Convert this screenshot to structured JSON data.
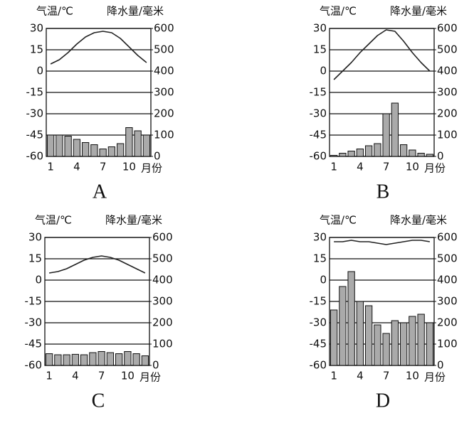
{
  "chart_data": [
    {
      "type": "climate",
      "title": "A",
      "x_label": "月份",
      "y_label": "气温/℃",
      "y2_label": "降水量/毫米",
      "categories": [
        "1",
        null,
        null,
        "4",
        null,
        null,
        "7",
        null,
        null,
        "10",
        null,
        null
      ],
      "ylim": [
        -60,
        30
      ],
      "yticks": [
        -60,
        -45,
        -30,
        -15,
        0,
        15,
        30
      ],
      "y2lim": [
        0,
        600
      ],
      "y2ticks": [
        0,
        100,
        200,
        300,
        400,
        500,
        600
      ],
      "grid": true,
      "series": [
        {
          "name": "气温",
          "kind": "line",
          "color": "#222",
          "values": [
            5,
            8,
            13,
            19,
            24,
            27,
            28,
            27,
            23,
            17,
            11,
            6
          ]
        },
        {
          "name": "降水量",
          "kind": "bar",
          "axis": "y2",
          "color": "#aaaaaa",
          "values": [
            100,
            100,
            95,
            80,
            65,
            55,
            35,
            45,
            60,
            135,
            120,
            100
          ]
        }
      ]
    },
    {
      "type": "climate",
      "title": "B",
      "x_label": "月份",
      "y_label": "气温/℃",
      "y2_label": "降水量/毫米",
      "categories": [
        "1",
        null,
        null,
        "4",
        null,
        null,
        "7",
        null,
        null,
        "10",
        null,
        null
      ],
      "ylim": [
        -60,
        30
      ],
      "yticks": [
        -60,
        -45,
        -30,
        -15,
        0,
        15,
        30
      ],
      "y2lim": [
        0,
        600
      ],
      "y2ticks": [
        0,
        100,
        200,
        300,
        400,
        500,
        600
      ],
      "grid": true,
      "series": [
        {
          "name": "气温",
          "kind": "line",
          "color": "#222",
          "values": [
            -6,
            0,
            6,
            13,
            19,
            25,
            29,
            28,
            21,
            13,
            6,
            0
          ]
        },
        {
          "name": "降水量",
          "kind": "bar",
          "axis": "y2",
          "color": "#aaaaaa",
          "values": [
            5,
            15,
            25,
            35,
            50,
            60,
            200,
            250,
            55,
            30,
            15,
            10
          ]
        }
      ]
    },
    {
      "type": "climate",
      "title": "C",
      "x_label": "月份",
      "y_label": "气温/℃",
      "y2_label": "降水量/毫米",
      "categories": [
        "1",
        null,
        null,
        "4",
        null,
        null,
        "7",
        null,
        null,
        "10",
        null,
        null
      ],
      "ylim": [
        -60,
        30
      ],
      "yticks": [
        -60,
        -45,
        -30,
        -15,
        0,
        15,
        30
      ],
      "y2lim": [
        0,
        600
      ],
      "y2ticks": [
        0,
        100,
        200,
        300,
        400,
        500,
        600
      ],
      "grid": true,
      "series": [
        {
          "name": "气温",
          "kind": "line",
          "color": "#222",
          "values": [
            5,
            6,
            8,
            11,
            14,
            16,
            17,
            16,
            14,
            11,
            8,
            5
          ]
        },
        {
          "name": "降水量",
          "kind": "bar",
          "axis": "y2",
          "color": "#aaaaaa",
          "values": [
            55,
            50,
            50,
            52,
            50,
            60,
            65,
            60,
            55,
            65,
            55,
            45
          ]
        }
      ]
    },
    {
      "type": "climate",
      "title": "D",
      "x_label": "月份",
      "y_label": "气温/℃",
      "y2_label": "降水量/毫米",
      "categories": [
        "1",
        null,
        null,
        "4",
        null,
        null,
        "7",
        null,
        null,
        "10",
        null,
        null
      ],
      "ylim": [
        -60,
        30
      ],
      "yticks": [
        -60,
        -45,
        -30,
        -15,
        0,
        15,
        30
      ],
      "y2lim": [
        0,
        600
      ],
      "y2ticks": [
        0,
        100,
        200,
        300,
        400,
        500,
        600
      ],
      "grid": true,
      "series": [
        {
          "name": "气温",
          "kind": "line",
          "color": "#222",
          "values": [
            27,
            27,
            28,
            27,
            27,
            26,
            25,
            26,
            27,
            28,
            28,
            27
          ]
        },
        {
          "name": "降水量",
          "kind": "bar",
          "axis": "y2",
          "color": "#aaaaaa",
          "values": [
            260,
            370,
            440,
            300,
            280,
            190,
            150,
            210,
            200,
            230,
            240,
            200
          ]
        }
      ]
    }
  ]
}
